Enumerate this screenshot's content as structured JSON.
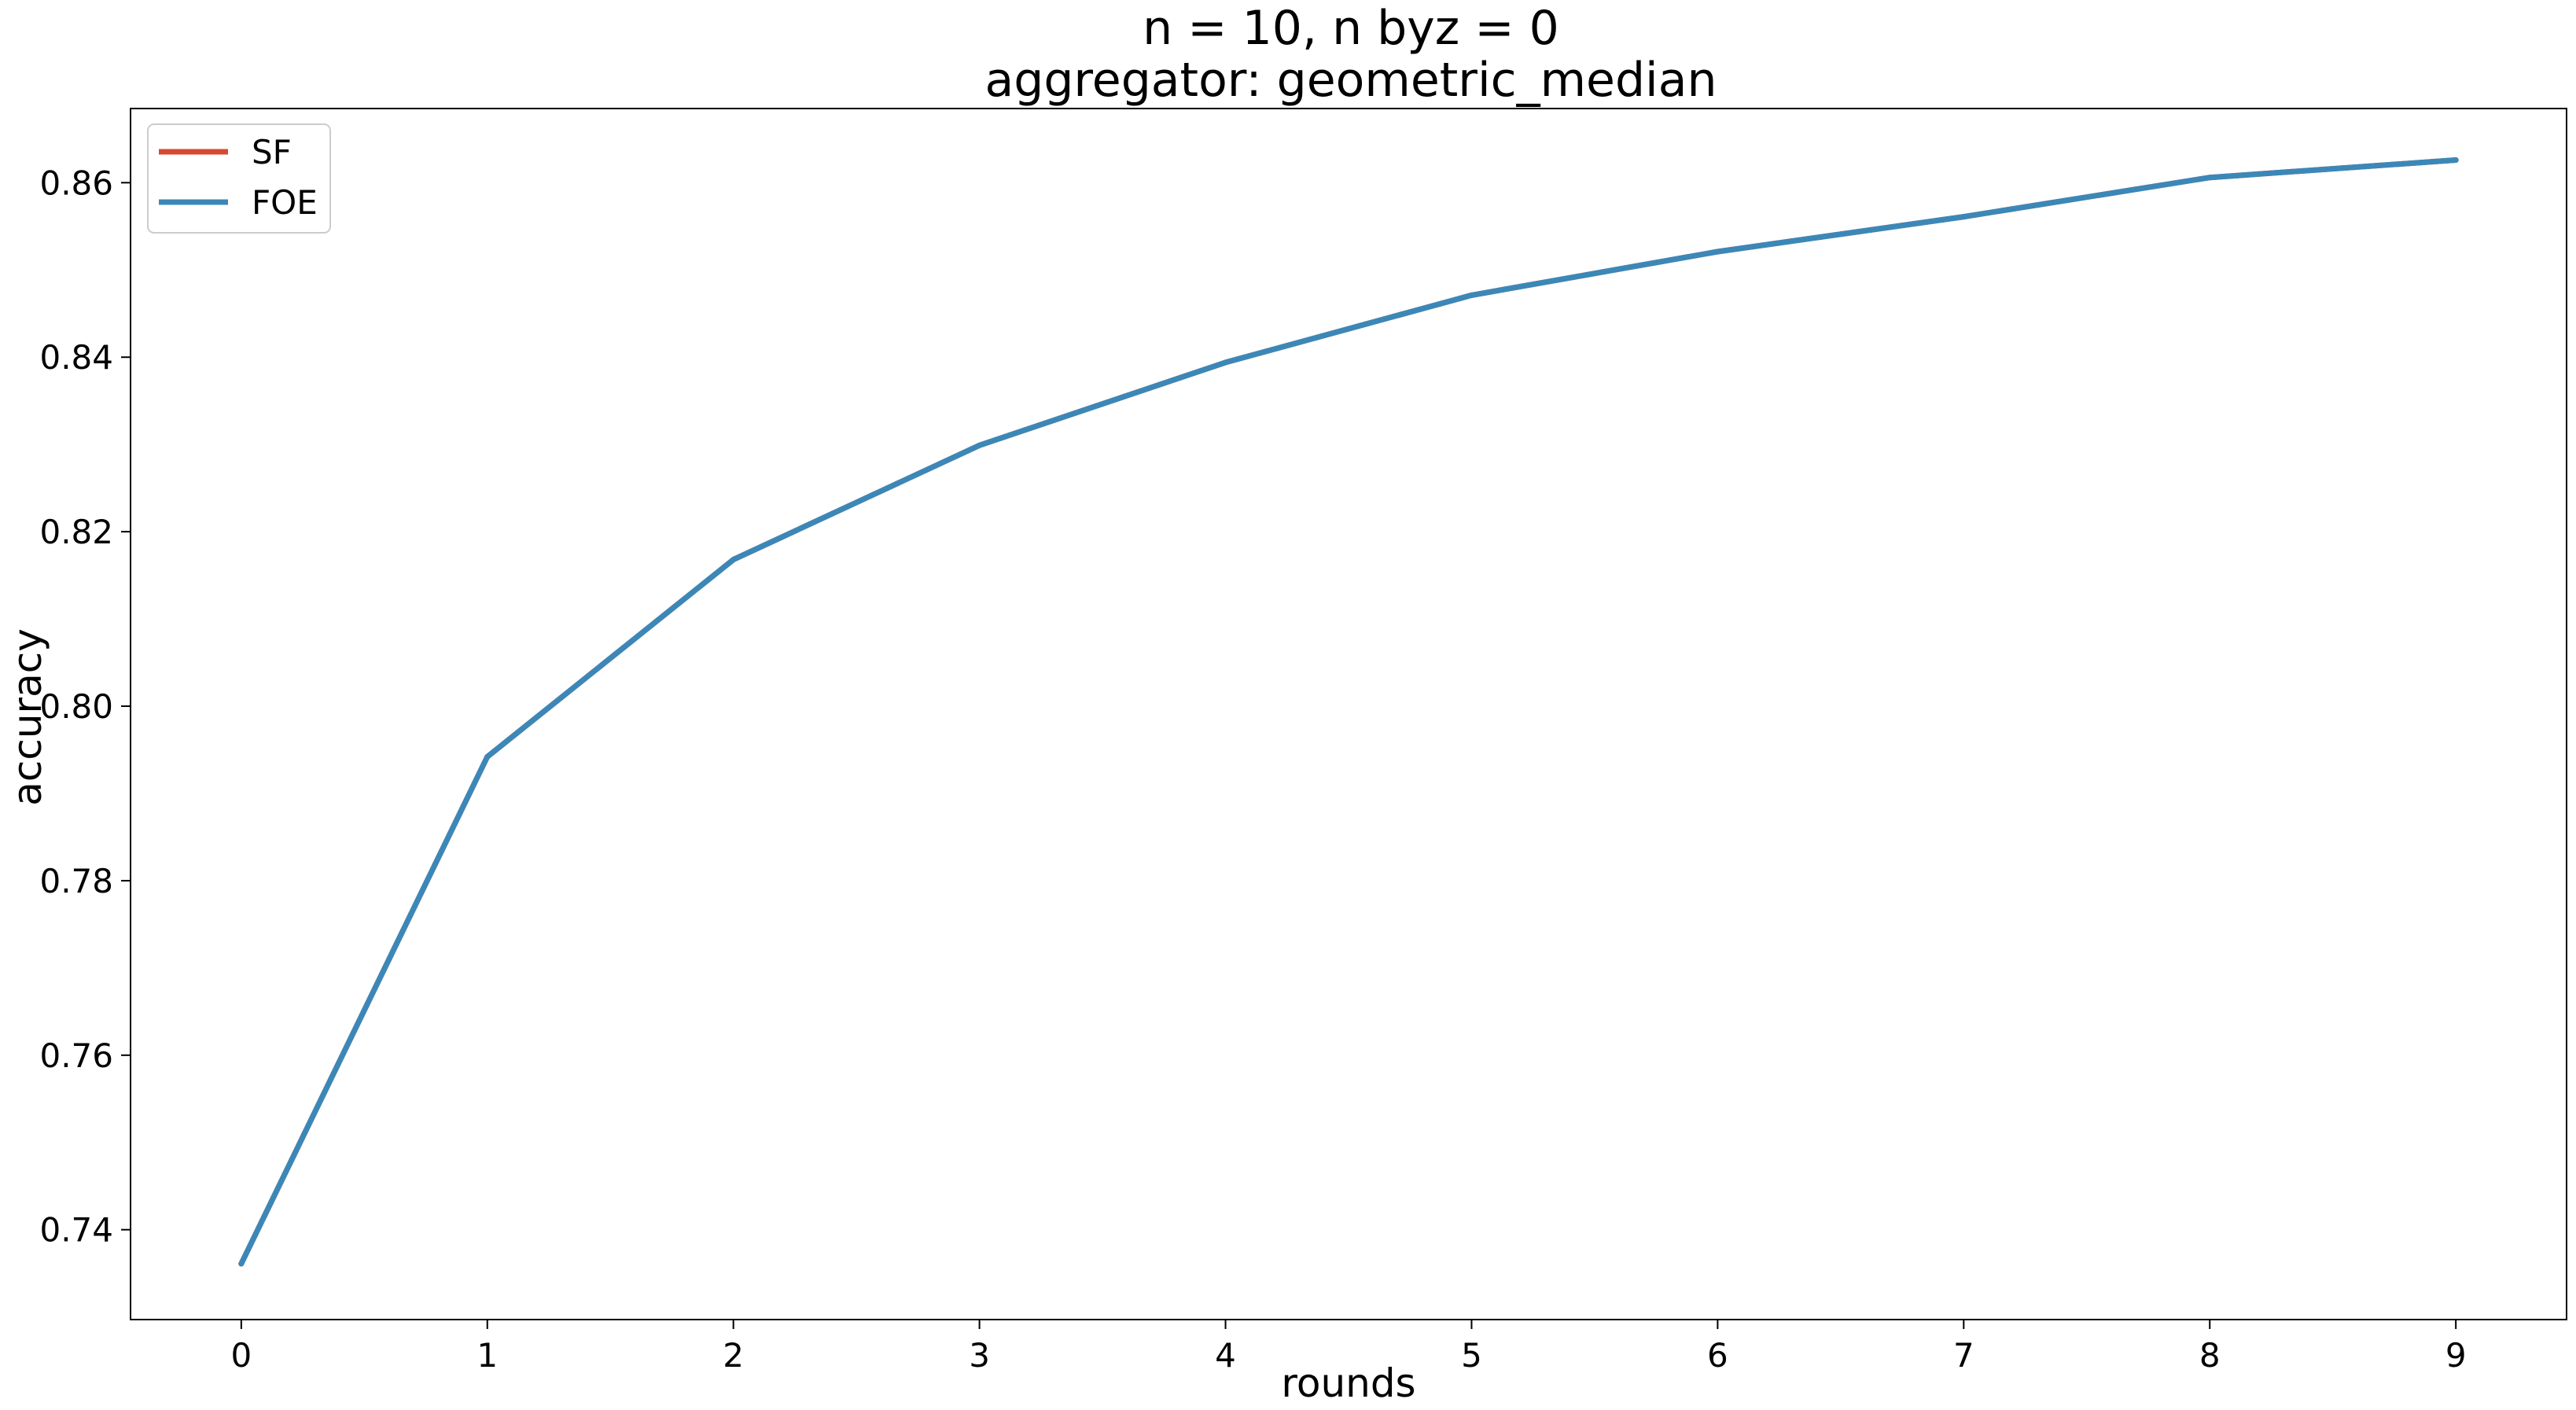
{
  "chart_data": {
    "type": "line",
    "title": "n = 10, n byz = 0",
    "subtitle": "aggregator: geometric_median",
    "xlabel": "rounds",
    "ylabel": "accuracy",
    "x": [
      0,
      1,
      2,
      3,
      4,
      5,
      6,
      7,
      8,
      9
    ],
    "xlim": [
      -0.45,
      9.45
    ],
    "ylim": [
      0.7297,
      0.8685
    ],
    "x_ticks": [
      0,
      1,
      2,
      3,
      4,
      5,
      6,
      7,
      8,
      9
    ],
    "x_tick_labels": [
      "0",
      "1",
      "2",
      "3",
      "4",
      "5",
      "6",
      "7",
      "8",
      "9"
    ],
    "y_ticks": [
      0.74,
      0.76,
      0.78,
      0.8,
      0.82,
      0.84,
      0.86
    ],
    "y_tick_labels": [
      "0.74",
      "0.76",
      "0.78",
      "0.80",
      "0.82",
      "0.84",
      "0.86"
    ],
    "grid": false,
    "legend_position": "top-left",
    "series": [
      {
        "name": "SF",
        "color": "#d64a32",
        "values": [
          0.7361,
          0.7942,
          0.8168,
          0.8299,
          0.8394,
          0.8471,
          0.8521,
          0.8561,
          0.8606,
          0.8626
        ]
      },
      {
        "name": "FOE",
        "color": "#3b88b8",
        "values": [
          0.7361,
          0.7942,
          0.8168,
          0.8299,
          0.8394,
          0.8471,
          0.8521,
          0.8561,
          0.8606,
          0.8626
        ]
      }
    ]
  }
}
